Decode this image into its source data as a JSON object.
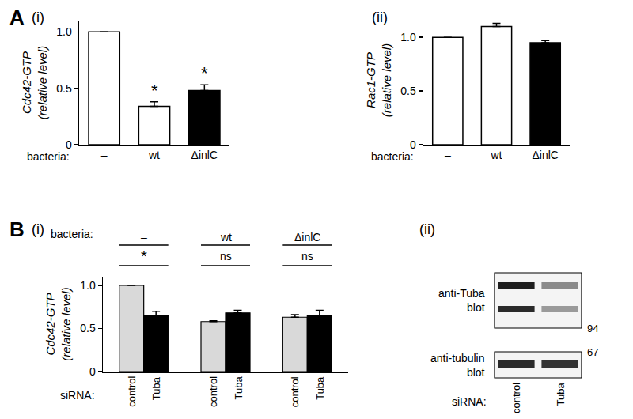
{
  "panels": [
    {
      "label": "A",
      "subpanels": [
        "(i)",
        "(ii)"
      ]
    },
    {
      "label": "B",
      "subpanels": [
        "(i)",
        "(ii)"
      ]
    }
  ],
  "chart_data": [
    {
      "type": "bar",
      "ylabel": [
        "Cdc42-GTP",
        "(relative level)"
      ],
      "xlabel": "bacteria:",
      "categories": [
        "–",
        "wt",
        "ΔinlC"
      ],
      "values": [
        1,
        0.34,
        0.48
      ],
      "errors": [
        0,
        0.04,
        0.05
      ],
      "colors": [
        "#ffffff",
        "#ffffff",
        "#000000"
      ],
      "annotations": [
        {
          "category": "wt",
          "text": "*"
        },
        {
          "category": "ΔinlC",
          "text": "*"
        }
      ],
      "ylim": [
        0,
        1.1
      ],
      "yticks": [
        0,
        0.5,
        {
          "value": 1,
          "label": "1.0"
        }
      ],
      "grid": false
    },
    {
      "type": "bar",
      "ylabel": [
        "Rac1-GTP",
        "(relative level)"
      ],
      "xlabel": "bacteria:",
      "categories": [
        "–",
        "wt",
        "ΔinlC"
      ],
      "values": [
        1,
        1.1,
        0.95
      ],
      "errors": [
        0,
        0.03,
        0.02
      ],
      "colors": [
        "#ffffff",
        "#ffffff",
        "#000000"
      ],
      "ylim": [
        0,
        1.2
      ],
      "yticks": [
        0,
        0.5,
        {
          "value": 1,
          "label": "1.0"
        }
      ],
      "grid": false
    },
    {
      "type": "bar",
      "ylabel": [
        "Cdc42-GTP",
        "(relative level)"
      ],
      "group_title": "bacteria:",
      "xlabel": "siRNA:",
      "categories": [
        "–",
        "wt",
        "ΔinlC"
      ],
      "series": [
        {
          "name": "control",
          "color": "#d9d9d9",
          "values": [
            1,
            0.58,
            0.63
          ],
          "errors": [
            0,
            0.01,
            0.03
          ]
        },
        {
          "name": "Tuba",
          "color": "#000000",
          "values": [
            0.65,
            0.68,
            0.65
          ],
          "errors": [
            0.05,
            0.03,
            0.06
          ]
        }
      ],
      "annotations": [
        {
          "category": "–",
          "text": "*"
        },
        {
          "category": "wt",
          "text": "ns"
        },
        {
          "category": "ΔinlC",
          "text": "ns"
        }
      ],
      "ylim": [
        0,
        1.1
      ],
      "yticks": [
        0,
        0.5,
        {
          "value": 1,
          "label": "1.0"
        }
      ],
      "grid": false
    }
  ],
  "blot": {
    "blots": [
      {
        "label": [
          "anti-Tuba",
          "blot"
        ],
        "size_marker": 94
      },
      {
        "label": [
          "anti-tubulin",
          "blot"
        ],
        "size_marker": 67
      }
    ],
    "lanes": [
      "control",
      "Tuba"
    ],
    "lanes_label": "siRNA:"
  }
}
